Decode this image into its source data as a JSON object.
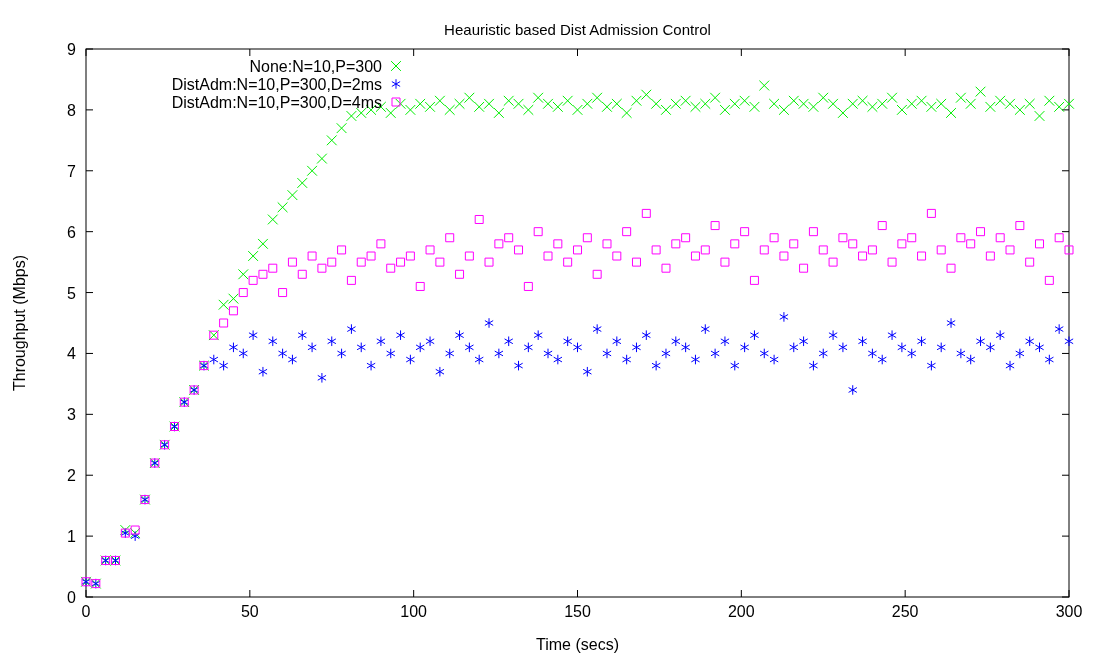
{
  "chart_data": {
    "type": "scatter",
    "title": "Heauristic based Dist Admission Control",
    "xlabel": "Time (secs)",
    "ylabel": "Throughput (Mbps)",
    "x": [
      0,
      3,
      6,
      9,
      12,
      15,
      18,
      21,
      24,
      27,
      30,
      33,
      36,
      39,
      42,
      45,
      48,
      51,
      54,
      57,
      60,
      63,
      66,
      69,
      72,
      75,
      78,
      81,
      84,
      87,
      90,
      93,
      96,
      99,
      102,
      105,
      108,
      111,
      114,
      117,
      120,
      123,
      126,
      129,
      132,
      135,
      138,
      141,
      144,
      147,
      150,
      153,
      156,
      159,
      162,
      165,
      168,
      171,
      174,
      177,
      180,
      183,
      186,
      189,
      192,
      195,
      198,
      201,
      204,
      207,
      210,
      213,
      216,
      219,
      222,
      225,
      228,
      231,
      234,
      237,
      240,
      243,
      246,
      249,
      252,
      255,
      258,
      261,
      264,
      267,
      270,
      273,
      276,
      279,
      282,
      285,
      288,
      291,
      294,
      297,
      300
    ],
    "series": [
      {
        "name": "None:N=10,P=300",
        "color": "#00ee00",
        "marker": "cross",
        "values": [
          0.25,
          0.22,
          0.6,
          0.6,
          1.1,
          1.05,
          1.6,
          2.2,
          2.5,
          2.8,
          3.2,
          3.4,
          3.8,
          4.3,
          4.8,
          4.9,
          5.3,
          5.6,
          5.8,
          6.2,
          6.4,
          6.6,
          6.8,
          7.0,
          7.2,
          7.5,
          7.7,
          7.9,
          7.95,
          8.0,
          8.05,
          7.95,
          8.1,
          8.0,
          8.1,
          8.05,
          8.15,
          8.0,
          8.1,
          8.2,
          8.05,
          8.1,
          7.95,
          8.15,
          8.1,
          8.0,
          8.2,
          8.1,
          8.05,
          8.15,
          8.0,
          8.1,
          8.2,
          8.05,
          8.1,
          7.95,
          8.15,
          8.25,
          8.1,
          8.0,
          8.1,
          8.15,
          8.05,
          8.1,
          8.2,
          8.0,
          8.1,
          8.15,
          8.05,
          8.4,
          8.1,
          8.0,
          8.15,
          8.1,
          8.05,
          8.2,
          8.1,
          7.95,
          8.1,
          8.15,
          8.05,
          8.1,
          8.2,
          8.0,
          8.1,
          8.15,
          8.05,
          8.1,
          7.95,
          8.2,
          8.1,
          8.3,
          8.05,
          8.15,
          8.1,
          8.0,
          8.1,
          7.9,
          8.15,
          8.05,
          8.1
        ]
      },
      {
        "name": "DistAdm:N=10,P=300,D=2ms",
        "color": "#0000ff",
        "values": [
          0.25,
          0.22,
          0.6,
          0.6,
          1.05,
          1.0,
          1.6,
          2.2,
          2.5,
          2.8,
          3.2,
          3.4,
          3.8,
          3.9,
          3.8,
          4.1,
          4.0,
          4.3,
          3.7,
          4.2,
          4.0,
          3.9,
          4.3,
          4.1,
          3.6,
          4.2,
          4.0,
          4.4,
          4.1,
          3.8,
          4.2,
          4.0,
          4.3,
          3.9,
          4.1,
          4.2,
          3.7,
          4.0,
          4.3,
          4.1,
          3.9,
          4.5,
          4.0,
          4.2,
          3.8,
          4.1,
          4.3,
          4.0,
          3.9,
          4.2,
          4.1,
          3.7,
          4.4,
          4.0,
          4.2,
          3.9,
          4.1,
          4.3,
          3.8,
          4.0,
          4.2,
          4.1,
          3.9,
          4.4,
          4.0,
          4.2,
          3.8,
          4.1,
          4.3,
          4.0,
          3.9,
          4.6,
          4.1,
          4.2,
          3.8,
          4.0,
          4.3,
          4.1,
          3.4,
          4.2,
          4.0,
          3.9,
          4.3,
          4.1,
          4.0,
          4.2,
          3.8,
          4.1,
          4.5,
          4.0,
          3.9,
          4.2,
          4.1,
          4.3,
          3.8,
          4.0,
          4.2,
          4.1,
          3.9,
          4.4,
          4.2
        ]
      },
      {
        "name": "DistAdm:N=10,P=300,D=4ms",
        "color": "#ff00ff",
        "marker": "square",
        "values": [
          0.25,
          0.22,
          0.6,
          0.6,
          1.05,
          1.1,
          1.6,
          2.2,
          2.5,
          2.8,
          3.2,
          3.4,
          3.8,
          4.3,
          4.5,
          4.7,
          5.0,
          5.2,
          5.3,
          5.4,
          5.0,
          5.5,
          5.3,
          5.6,
          5.4,
          5.5,
          5.7,
          5.2,
          5.5,
          5.6,
          5.8,
          5.4,
          5.5,
          5.6,
          5.1,
          5.7,
          5.5,
          5.9,
          5.3,
          5.6,
          6.2,
          5.5,
          5.8,
          5.9,
          5.7,
          5.1,
          6.0,
          5.6,
          5.8,
          5.5,
          5.7,
          5.9,
          5.3,
          5.8,
          5.6,
          6.0,
          5.5,
          6.3,
          5.7,
          5.4,
          5.8,
          5.9,
          5.6,
          5.7,
          6.1,
          5.5,
          5.8,
          6.0,
          5.2,
          5.7,
          5.9,
          5.6,
          5.8,
          5.4,
          6.0,
          5.7,
          5.5,
          5.9,
          5.8,
          5.6,
          5.7,
          6.1,
          5.5,
          5.8,
          5.9,
          5.6,
          6.3,
          5.7,
          5.4,
          5.9,
          5.8,
          6.0,
          5.6,
          5.9,
          5.7,
          6.1,
          5.5,
          5.8,
          5.2,
          5.9,
          5.7
        ]
      }
    ],
    "xlim": [
      0,
      300
    ],
    "xticks": [
      0,
      50,
      100,
      150,
      200,
      250,
      300
    ],
    "ylim": [
      0,
      9
    ],
    "yticks": [
      0,
      1,
      2,
      3,
      4,
      5,
      6,
      7,
      8,
      9
    ],
    "legend": "top left"
  }
}
